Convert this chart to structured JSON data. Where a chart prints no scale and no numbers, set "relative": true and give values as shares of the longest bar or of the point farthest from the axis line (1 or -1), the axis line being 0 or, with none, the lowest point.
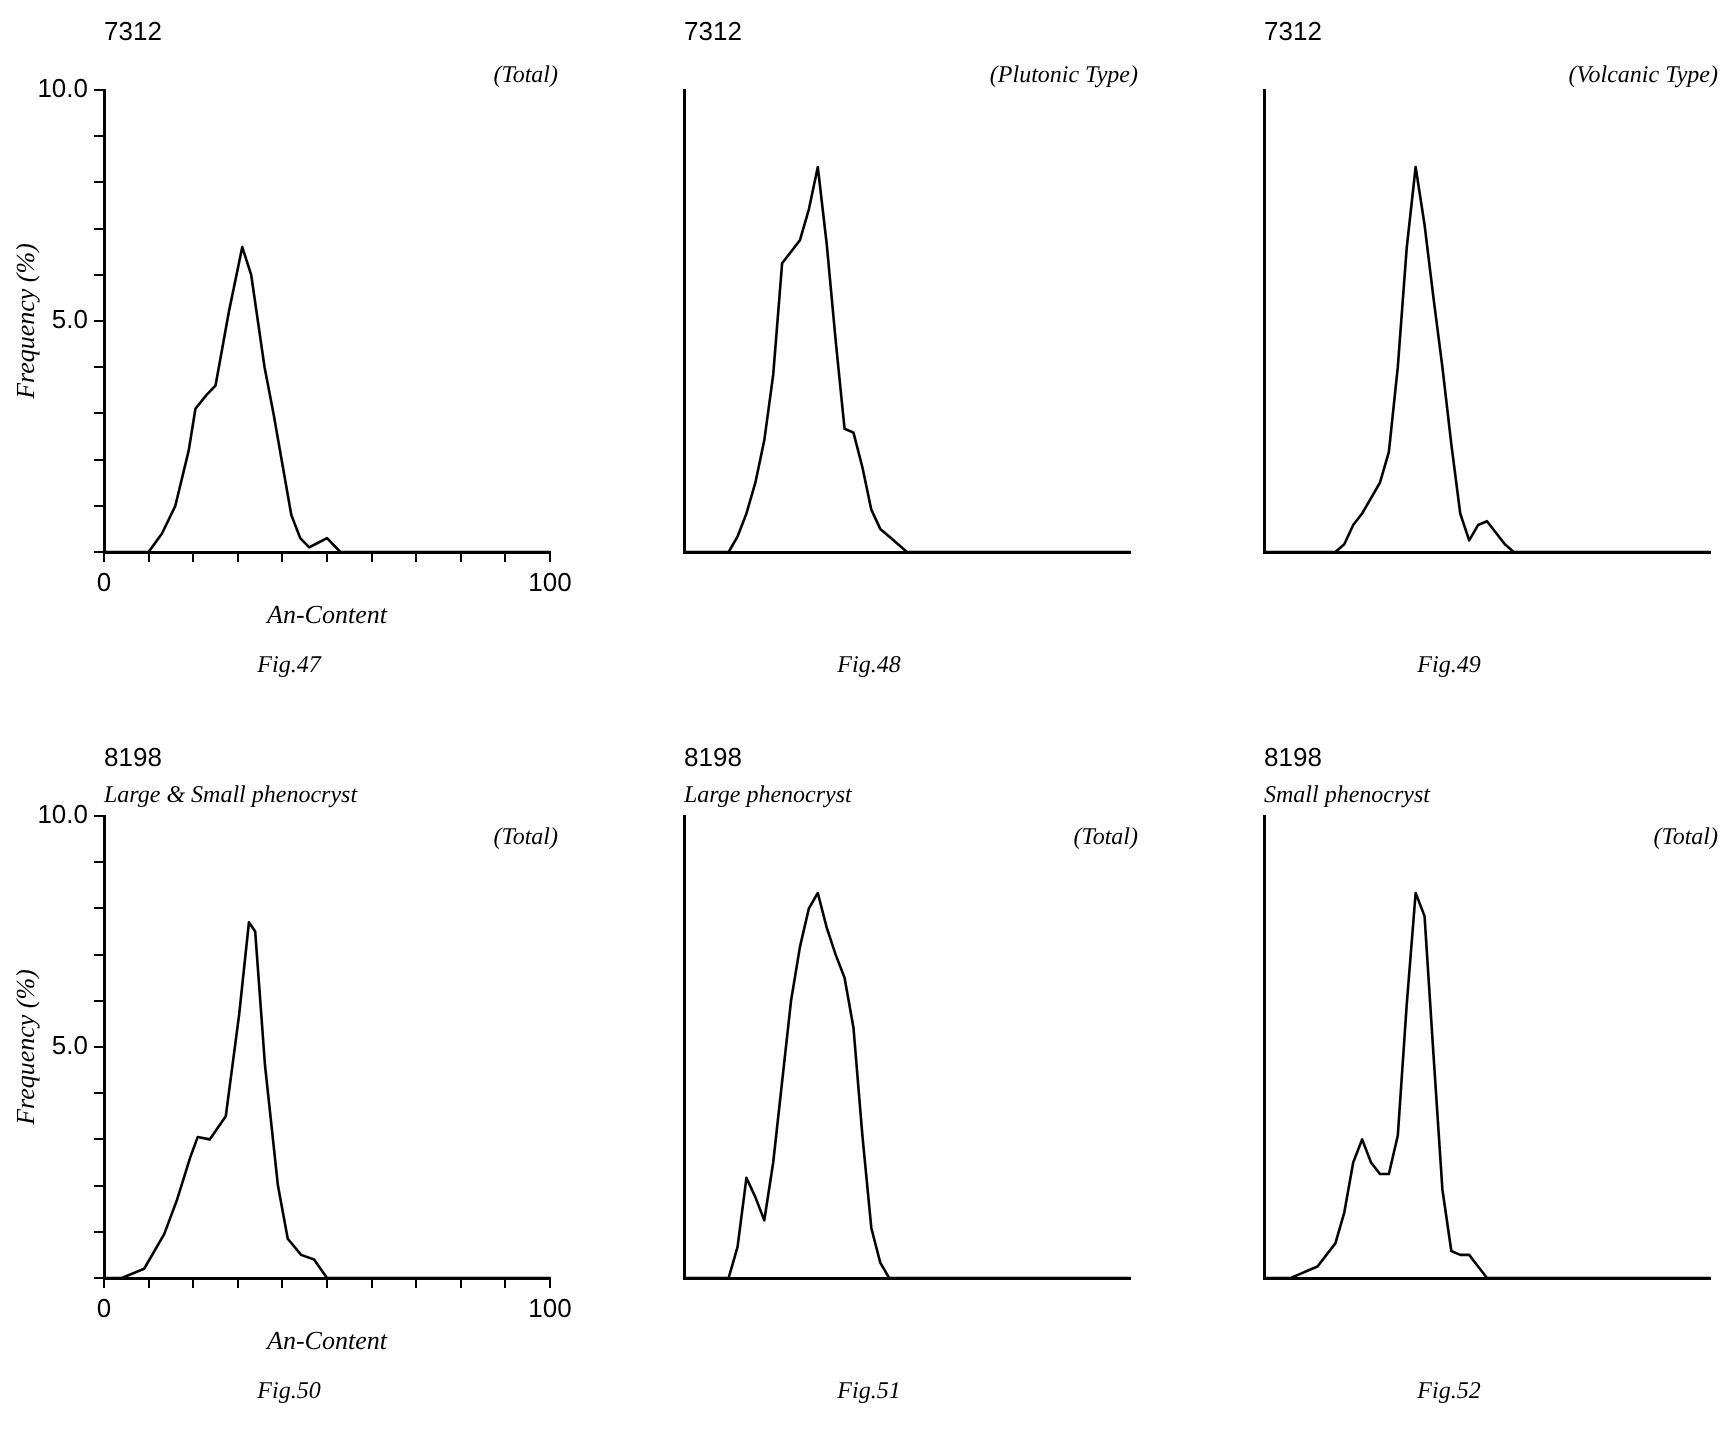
{
  "chart_data": [
    {
      "type": "line",
      "title": "7312",
      "xlabel": "An-Content",
      "ylabel": "Frequency (%)",
      "annotations": [
        "(Total)",
        "Fig.47"
      ],
      "x": [
        0,
        10,
        13,
        16,
        19,
        20.5,
        23,
        25,
        28,
        31,
        33,
        36,
        38,
        40,
        42,
        44,
        46,
        48,
        50,
        53,
        100
      ],
      "series": [
        {
          "color": "#000000",
          "values": [
            0,
            0,
            0.4,
            1.0,
            2.2,
            3.1,
            3.4,
            3.6,
            5.2,
            6.6,
            6.0,
            4.0,
            3.0,
            1.9,
            0.8,
            0.3,
            0.1,
            0.2,
            0.3,
            0,
            0
          ]
        }
      ],
      "xlim": [
        0,
        100
      ],
      "ylim": [
        0,
        10
      ],
      "xticks": [
        {
          "value": 0,
          "label": "0"
        },
        {
          "value": 10,
          "label": null
        },
        {
          "value": 20,
          "label": null
        },
        {
          "value": 30,
          "label": null
        },
        {
          "value": 40,
          "label": null
        },
        {
          "value": 50,
          "label": null
        },
        {
          "value": 60,
          "label": null
        },
        {
          "value": 70,
          "label": null
        },
        {
          "value": 80,
          "label": null
        },
        {
          "value": 90,
          "label": null
        },
        100
      ],
      "yticks": [
        {
          "value": 0,
          "label": null
        },
        {
          "value": 1,
          "label": null
        },
        {
          "value": 2,
          "label": null
        },
        {
          "value": 3,
          "label": null
        },
        {
          "value": 4,
          "label": null
        },
        {
          "value": 5,
          "label": "5.0"
        },
        {
          "value": 6,
          "label": null
        },
        {
          "value": 7,
          "label": null
        },
        {
          "value": 8,
          "label": null
        },
        {
          "value": 9,
          "label": null
        },
        {
          "value": 10,
          "label": "10.0"
        }
      ],
      "grid": false,
      "legend": false,
      "marker": "none",
      "line_style": "solid"
    },
    {
      "type": "line",
      "title": "7312",
      "annotations": [
        "(Plutonic Type)",
        "Fig.48"
      ],
      "relative": true,
      "categories": [
        null,
        null,
        null,
        null,
        null,
        null,
        null,
        null,
        null,
        null,
        null,
        null,
        null,
        null,
        null,
        null,
        null,
        null,
        null,
        null,
        null,
        null,
        null,
        null,
        null,
        null,
        null,
        null,
        null,
        null,
        null,
        null,
        null,
        null,
        null,
        null,
        null,
        null,
        null,
        null,
        null,
        null,
        null,
        null,
        null,
        null,
        null,
        null,
        null,
        null,
        null
      ],
      "series": [
        {
          "color": "#000000",
          "values": [
            0,
            0,
            0,
            0,
            0,
            0,
            0.04,
            0.1,
            0.18,
            0.29,
            0.46,
            0.75,
            0.78,
            0.81,
            0.89,
            1,
            0.8,
            0.55,
            0.32,
            0.31,
            0.22,
            0.11,
            0.06,
            0.04,
            0.02,
            0,
            0,
            0,
            0,
            0,
            0,
            0,
            0,
            0,
            0,
            0,
            0,
            0,
            0,
            0,
            0,
            0,
            0,
            0,
            0,
            0,
            0,
            0,
            0,
            0,
            0
          ]
        }
      ],
      "grid": false,
      "legend": false,
      "marker": "none",
      "line_style": "solid"
    },
    {
      "type": "line",
      "title": "7312",
      "annotations": [
        "(Volcanic Type)",
        "Fig.49"
      ],
      "relative": true,
      "categories": [
        null,
        null,
        null,
        null,
        null,
        null,
        null,
        null,
        null,
        null,
        null,
        null,
        null,
        null,
        null,
        null,
        null,
        null,
        null,
        null,
        null,
        null,
        null,
        null,
        null,
        null,
        null,
        null,
        null,
        null,
        null,
        null,
        null,
        null,
        null,
        null,
        null,
        null,
        null,
        null,
        null,
        null,
        null,
        null,
        null,
        null,
        null,
        null,
        null,
        null,
        null
      ],
      "series": [
        {
          "color": "#000000",
          "values": [
            0,
            0,
            0,
            0,
            0,
            0,
            0,
            0,
            0,
            0.02,
            0.07,
            0.1,
            0.14,
            0.18,
            0.26,
            0.48,
            0.79,
            1,
            0.85,
            0.66,
            0.48,
            0.28,
            0.1,
            0.03,
            0.07,
            0.08,
            0.05,
            0.02,
            0,
            0,
            0,
            0,
            0,
            0,
            0,
            0,
            0,
            0,
            0,
            0,
            0,
            0,
            0,
            0,
            0,
            0,
            0,
            0,
            0,
            0,
            0
          ]
        }
      ],
      "grid": false,
      "legend": false,
      "marker": "none",
      "line_style": "solid"
    },
    {
      "type": "line",
      "title": "8198",
      "subtitle": "Large & Small phenocryst",
      "xlabel": "An-Content",
      "ylabel": "Frequency (%)",
      "annotations": [
        "(Total)",
        "Fig.50"
      ],
      "x": [
        0,
        4,
        9,
        13.5,
        16.4,
        19.3,
        21,
        23.7,
        27.3,
        30.3,
        32.5,
        33.9,
        36.1,
        39,
        41.2,
        44.2,
        47.1,
        50,
        100
      ],
      "series": [
        {
          "color": "#000000",
          "values": [
            0,
            0,
            0.2,
            0.95,
            1.7,
            2.6,
            3.05,
            3.0,
            3.5,
            5.7,
            7.7,
            7.5,
            4.6,
            2.0,
            0.85,
            0.5,
            0.4,
            0,
            0
          ]
        }
      ],
      "xlim": [
        0,
        100
      ],
      "ylim": [
        0,
        10
      ],
      "xticks": [
        {
          "value": 0,
          "label": "0"
        },
        {
          "value": 10,
          "label": null
        },
        {
          "value": 20,
          "label": null
        },
        {
          "value": 30,
          "label": null
        },
        {
          "value": 40,
          "label": null
        },
        {
          "value": 50,
          "label": null
        },
        {
          "value": 60,
          "label": null
        },
        {
          "value": 70,
          "label": null
        },
        {
          "value": 80,
          "label": null
        },
        {
          "value": 90,
          "label": null
        },
        100
      ],
      "yticks": [
        {
          "value": 0,
          "label": null
        },
        {
          "value": 1,
          "label": null
        },
        {
          "value": 2,
          "label": null
        },
        {
          "value": 3,
          "label": null
        },
        {
          "value": 4,
          "label": null
        },
        {
          "value": 5,
          "label": "5.0"
        },
        {
          "value": 6,
          "label": null
        },
        {
          "value": 7,
          "label": null
        },
        {
          "value": 8,
          "label": null
        },
        {
          "value": 9,
          "label": null
        },
        {
          "value": 10,
          "label": "10.0"
        }
      ],
      "grid": false,
      "legend": false,
      "marker": "none",
      "line_style": "solid"
    },
    {
      "type": "line",
      "title": "8198",
      "subtitle": "Large phenocryst",
      "annotations": [
        "(Total)",
        "Fig.51"
      ],
      "relative": true,
      "categories": [
        null,
        null,
        null,
        null,
        null,
        null,
        null,
        null,
        null,
        null,
        null,
        null,
        null,
        null,
        null,
        null,
        null,
        null,
        null,
        null,
        null,
        null,
        null,
        null,
        null,
        null,
        null,
        null,
        null,
        null,
        null,
        null,
        null,
        null,
        null,
        null,
        null,
        null,
        null,
        null,
        null,
        null,
        null,
        null,
        null,
        null,
        null,
        null,
        null,
        null,
        null
      ],
      "series": [
        {
          "color": "#000000",
          "values": [
            0,
            0,
            0,
            0,
            0,
            0,
            0.08,
            0.26,
            0.21,
            0.15,
            0.3,
            0.51,
            0.72,
            0.86,
            0.96,
            1,
            0.91,
            0.84,
            0.78,
            0.65,
            0.37,
            0.13,
            0.04,
            0,
            0,
            0,
            0,
            0,
            0,
            0,
            0,
            0,
            0,
            0,
            0,
            0,
            0,
            0,
            0,
            0,
            0,
            0,
            0,
            0,
            0,
            0,
            0,
            0,
            0,
            0,
            0
          ]
        }
      ],
      "grid": false,
      "legend": false,
      "marker": "none",
      "line_style": "solid"
    },
    {
      "type": "line",
      "title": "8198",
      "subtitle": "Small phenocryst",
      "annotations": [
        "(Total)",
        "Fig.52"
      ],
      "relative": true,
      "categories": [
        null,
        null,
        null,
        null,
        null,
        null,
        null,
        null,
        null,
        null,
        null,
        null,
        null,
        null,
        null,
        null,
        null,
        null,
        null,
        null,
        null,
        null,
        null,
        null,
        null,
        null,
        null,
        null,
        null,
        null,
        null,
        null,
        null,
        null,
        null,
        null,
        null,
        null,
        null,
        null,
        null,
        null,
        null,
        null,
        null,
        null,
        null,
        null,
        null,
        null,
        null
      ],
      "series": [
        {
          "color": "#000000",
          "values": [
            0,
            0,
            0,
            0,
            0.01,
            0.02,
            0.03,
            0.06,
            0.09,
            0.17,
            0.3,
            0.36,
            0.3,
            0.27,
            0.27,
            0.37,
            0.71,
            1,
            0.94,
            0.58,
            0.23,
            0.07,
            0.06,
            0.06,
            0.03,
            0,
            0,
            0,
            0,
            0,
            0,
            0,
            0,
            0,
            0,
            0,
            0,
            0,
            0,
            0,
            0,
            0,
            0,
            0,
            0,
            0,
            0,
            0,
            0,
            0,
            0
          ]
        }
      ],
      "grid": false,
      "legend": false,
      "marker": "none",
      "line_style": "solid"
    }
  ]
}
